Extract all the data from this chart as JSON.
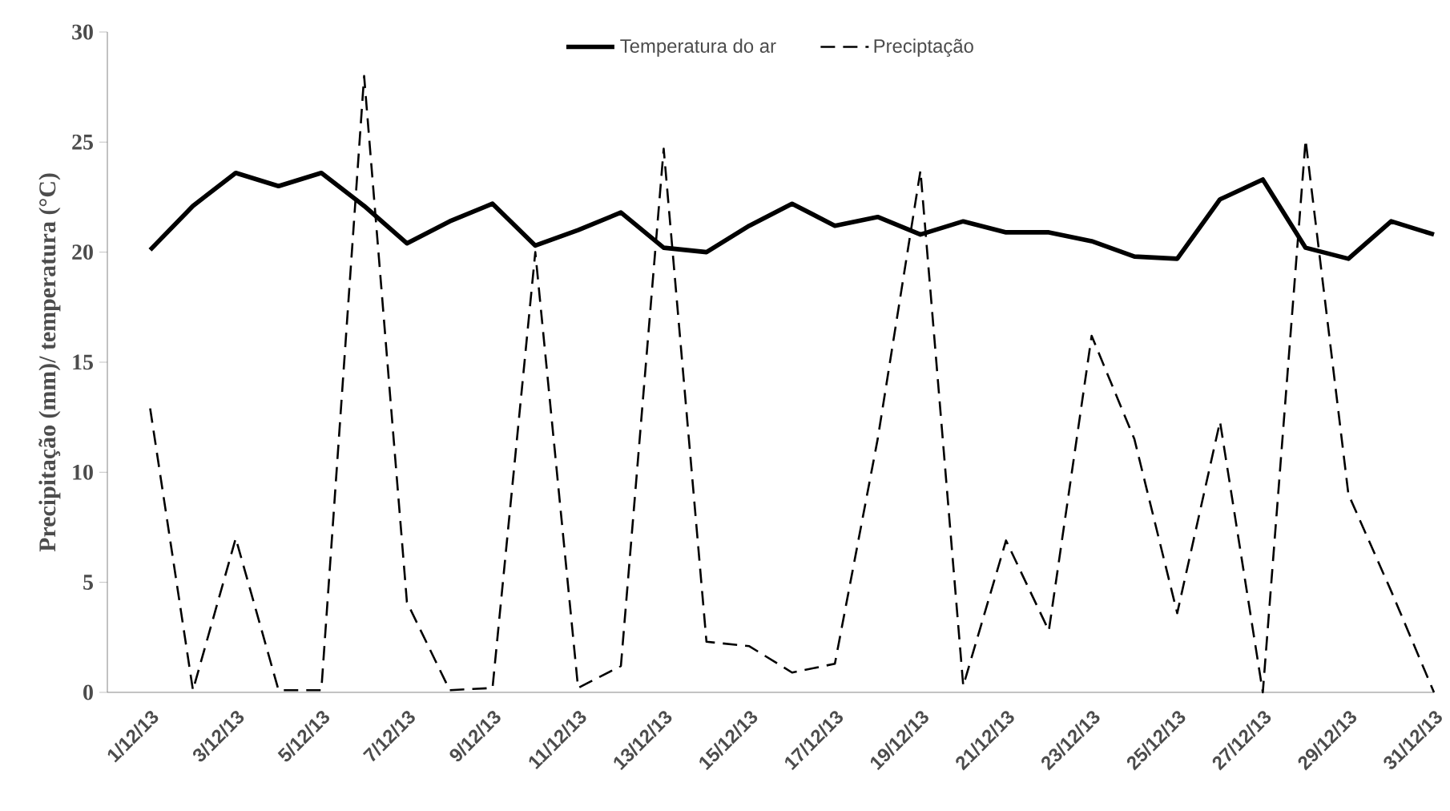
{
  "chart_data": {
    "type": "line",
    "ylabel": "Precipitação (mm)/ temperatura (°C)",
    "categories": [
      "1/12/13",
      null,
      "3/12/13",
      null,
      "5/12/13",
      null,
      "7/12/13",
      null,
      "9/12/13",
      null,
      "11/12/13",
      null,
      "13/12/13",
      null,
      "15/12/13",
      null,
      "17/12/13",
      null,
      "19/12/13",
      null,
      "21/12/13",
      null,
      "23/12/13",
      null,
      "25/12/13",
      null,
      "27/12/13",
      null,
      "29/12/13",
      null,
      "31/12/13"
    ],
    "series": [
      {
        "name": "Temperatura do ar",
        "color": "#000000",
        "line_style": "solid",
        "values": [
          20.1,
          22.1,
          23.6,
          23.0,
          23.6,
          22.1,
          20.4,
          21.4,
          22.2,
          20.3,
          21.0,
          21.8,
          20.2,
          20.0,
          21.2,
          22.2,
          21.2,
          21.6,
          20.8,
          21.4,
          20.9,
          20.9,
          20.5,
          19.8,
          19.7,
          22.4,
          23.3,
          20.2,
          19.7,
          21.4,
          20.8
        ]
      },
      {
        "name": "Preciptação",
        "color": "#000000",
        "line_style": "dashed",
        "values": [
          12.9,
          0.1,
          7.0,
          0.1,
          0.1,
          28.0,
          4.1,
          0.1,
          0.2,
          20.0,
          0.2,
          1.2,
          24.7,
          2.3,
          2.1,
          0.9,
          1.3,
          11.5,
          23.7,
          0.3,
          6.9,
          2.8,
          16.2,
          11.5,
          3.6,
          12.3,
          0.0,
          25.1,
          9.0,
          4.6,
          0.0
        ]
      }
    ],
    "ylim": [
      0,
      30
    ],
    "yticks": [
      0,
      5,
      10,
      15,
      20,
      25,
      30
    ],
    "grid": false,
    "legend": "top",
    "marker": "none"
  }
}
